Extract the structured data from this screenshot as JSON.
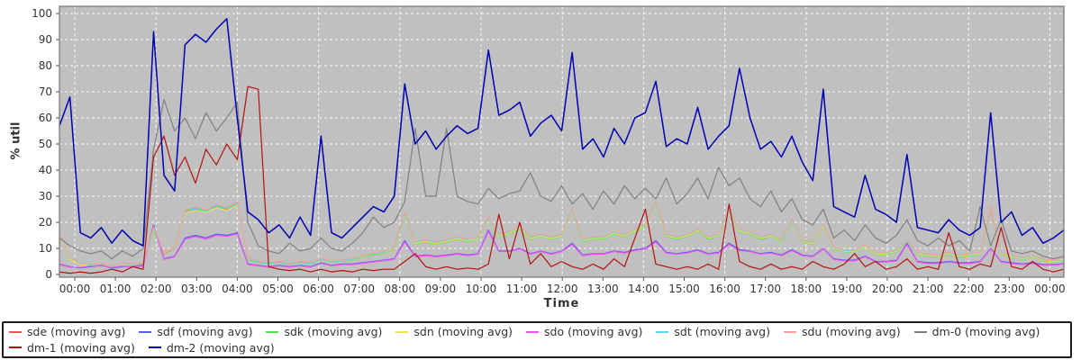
{
  "chart_data": {
    "type": "line",
    "title": "",
    "xlabel": "Time",
    "ylabel": "% util",
    "xlim_hours": [
      0,
      24
    ],
    "ylim": [
      0,
      100
    ],
    "grid": true,
    "legend_position": "bottom",
    "x_ticks": [
      "00:00",
      "01:00",
      "02:00",
      "03:00",
      "04:00",
      "05:00",
      "06:00",
      "07:00",
      "08:00",
      "09:00",
      "10:00",
      "11:00",
      "12:00",
      "13:00",
      "14:00",
      "15:00",
      "16:00",
      "17:00",
      "18:00",
      "19:00",
      "20:00",
      "21:00",
      "22:00",
      "23:00",
      "00:00"
    ],
    "y_ticks": [
      0,
      10,
      20,
      30,
      40,
      50,
      60,
      70,
      80,
      90,
      100
    ],
    "colors": {
      "plot_bg": "#c0c0c0",
      "grid": "#ffffff",
      "plot_border": "#7d7d7d",
      "axis_text": "#333333",
      "tick": "#555555",
      "page_bg": "#ffffff",
      "legend_border": "#1c1c1c"
    },
    "x_hours": [
      0,
      0.25,
      0.5,
      0.75,
      1,
      1.25,
      1.5,
      1.75,
      2,
      2.25,
      2.5,
      2.75,
      3,
      3.25,
      3.5,
      3.75,
      4,
      4.25,
      4.5,
      4.75,
      5,
      5.25,
      5.5,
      5.75,
      6,
      6.25,
      6.5,
      6.75,
      7,
      7.25,
      7.5,
      7.75,
      8,
      8.25,
      8.5,
      8.75,
      9,
      9.25,
      9.5,
      9.75,
      10,
      10.25,
      10.5,
      10.75,
      11,
      11.25,
      11.5,
      11.75,
      12,
      12.25,
      12.5,
      12.75,
      13,
      13.25,
      13.5,
      13.75,
      14,
      14.25,
      14.5,
      14.75,
      15,
      15.25,
      15.5,
      15.75,
      16,
      16.25,
      16.5,
      16.75,
      17,
      17.25,
      17.5,
      17.75,
      18,
      18.25,
      18.5,
      18.75,
      19,
      19.25,
      19.5,
      19.75,
      20,
      20.25,
      20.5,
      20.75,
      21,
      21.25,
      21.5,
      21.75,
      22,
      22.25,
      22.5,
      22.75,
      23,
      23.25,
      23.5,
      23.75,
      24
    ],
    "series": [
      {
        "name": "sde",
        "legend_label": "sde (moving avg)",
        "color": "#f25555",
        "values": [
          16,
          6,
          4,
          3.5,
          4,
          3,
          4.5,
          3.5,
          4,
          18,
          8,
          10,
          24,
          25,
          24,
          26,
          25,
          27,
          6,
          5,
          4.5,
          5,
          4,
          5,
          4.5,
          6,
          5,
          5.5,
          6,
          7,
          8,
          8.5,
          10,
          24,
          12,
          13,
          12,
          13,
          14,
          13,
          14,
          22,
          15,
          16,
          18,
          14,
          15,
          14,
          15,
          25,
          13,
          14,
          14,
          16,
          15,
          17,
          19,
          28,
          15,
          14,
          15,
          17,
          14,
          15,
          25,
          17,
          16,
          14,
          15,
          13,
          21,
          13,
          12,
          19,
          10,
          9,
          9,
          11,
          8,
          8,
          9,
          13,
          8,
          7.5,
          7,
          8,
          7,
          7.5,
          8,
          25,
          8,
          7,
          6,
          7,
          5.5,
          5,
          6
        ]
      },
      {
        "name": "sdf",
        "legend_label": "sdf (moving avg)",
        "color": "#5a5af2",
        "values": [
          4,
          3,
          2.5,
          3,
          3.5,
          2.5,
          3,
          3,
          3.5,
          19,
          6,
          7,
          14,
          15,
          14,
          15.5,
          15,
          16,
          4,
          3.5,
          3,
          3.5,
          3,
          3.5,
          3,
          4.5,
          3.5,
          4,
          4,
          4.5,
          5,
          5.5,
          6,
          13,
          7,
          7.5,
          7,
          7.5,
          8,
          7.5,
          8,
          17,
          9,
          9,
          10,
          8,
          9,
          8,
          9,
          12,
          7.5,
          8,
          8,
          9,
          8.5,
          9.5,
          10,
          13,
          8.5,
          8,
          8.5,
          9.5,
          8,
          8.5,
          12,
          9.5,
          9,
          8,
          8.5,
          7.5,
          9.5,
          7.5,
          7,
          10,
          6,
          5.5,
          5.5,
          7,
          5,
          5,
          5.5,
          12,
          5,
          4.5,
          4.5,
          5,
          4.5,
          4.5,
          5,
          10,
          5,
          4.5,
          4,
          4.5,
          3.8,
          3.8,
          4.2
        ]
      },
      {
        "name": "sdk",
        "legend_label": "sdk (moving avg)",
        "color": "#55e055",
        "values": [
          15.5,
          5.6,
          4.2,
          3.8,
          4.3,
          3.2,
          4.2,
          3.8,
          4.4,
          17,
          8.5,
          10.5,
          24.5,
          25.5,
          24.5,
          26.5,
          25.5,
          27.5,
          5.6,
          4.8,
          4.2,
          4.8,
          3.8,
          4.8,
          4.2,
          5.6,
          4.8,
          5.2,
          5.7,
          6.7,
          7.7,
          8.2,
          9.6,
          23.2,
          11.6,
          12.6,
          11.6,
          12.6,
          13.6,
          12.7,
          13.6,
          21.4,
          14.6,
          15.6,
          17.5,
          13.6,
          14.6,
          13.6,
          14.6,
          24.4,
          12.6,
          13.6,
          13.6,
          15.6,
          14.6,
          16.6,
          18.5,
          27.4,
          14.6,
          13.6,
          14.6,
          16.6,
          13.6,
          14.6,
          24.4,
          16.6,
          15.6,
          13.6,
          14.6,
          12.6,
          20.4,
          12.6,
          11.6,
          18.6,
          9.7,
          8.7,
          8.7,
          10.7,
          7.7,
          7.7,
          8.7,
          12.6,
          7.7,
          7.2,
          6.7,
          7.7,
          6.7,
          7.2,
          7.7,
          26,
          7.7,
          6.7,
          5.7,
          6.7,
          5.2,
          4.8,
          5.8
        ]
      },
      {
        "name": "sdn",
        "legend_label": "sdn (moving avg)",
        "color": "#e8e855",
        "values": [
          15.2,
          5.8,
          3.8,
          3.6,
          4.1,
          2.9,
          4.3,
          3.6,
          4.2,
          17.5,
          8.2,
          10.2,
          23.6,
          24.6,
          23.8,
          25.6,
          24.6,
          26.6,
          5.8,
          5.1,
          4.4,
          5.1,
          3.9,
          5.1,
          4.4,
          5.8,
          4.9,
          5.4,
          5.9,
          6.9,
          8.1,
          8.4,
          9.8,
          23.6,
          11.8,
          12.8,
          11.8,
          12.8,
          13.8,
          12.9,
          13.8,
          21.6,
          14.8,
          15.8,
          17.8,
          13.8,
          14.8,
          13.8,
          14.8,
          24.6,
          12.9,
          13.8,
          13.9,
          15.8,
          14.8,
          16.8,
          18.8,
          27.6,
          14.8,
          13.9,
          14.8,
          16.8,
          13.9,
          14.8,
          24.6,
          16.8,
          15.8,
          13.9,
          14.8,
          12.9,
          20.6,
          12.8,
          11.8,
          18.8,
          9.9,
          8.9,
          8.9,
          10.8,
          7.9,
          7.9,
          8.9,
          12.8,
          7.9,
          7.4,
          6.9,
          7.9,
          6.9,
          7.4,
          7.9,
          25.4,
          7.9,
          6.9,
          5.9,
          6.9,
          5.4,
          4.9,
          5.9
        ]
      },
      {
        "name": "sdo",
        "legend_label": "sdo (moving avg)",
        "color": "#ee55ee",
        "values": [
          3.8,
          2.8,
          2.7,
          3.2,
          3.3,
          2.7,
          3.2,
          2.8,
          3.3,
          18.5,
          5.8,
          6.8,
          13.5,
          14.5,
          13.6,
          15,
          14.6,
          15.6,
          3.8,
          3.3,
          2.8,
          3.3,
          2.8,
          3.3,
          2.8,
          4.3,
          3.3,
          3.8,
          3.8,
          4.3,
          4.8,
          5.3,
          5.8,
          12.5,
          6.8,
          7.2,
          6.8,
          7.2,
          7.8,
          7.2,
          7.8,
          16.5,
          8.8,
          8.8,
          9.8,
          7.8,
          8.8,
          7.8,
          8.8,
          11.5,
          7.2,
          7.8,
          7.8,
          8.8,
          8.2,
          9.2,
          9.8,
          12.5,
          8.2,
          7.8,
          8.2,
          9.2,
          7.8,
          8.2,
          11.5,
          9.2,
          8.8,
          7.8,
          8.2,
          7.2,
          9.2,
          7.2,
          6.8,
          9.8,
          5.8,
          5.2,
          5.2,
          6.8,
          4.8,
          4.8,
          5.2,
          11.5,
          4.8,
          4.2,
          4.2,
          4.8,
          4.2,
          4.2,
          4.8,
          9.8,
          4.8,
          4.2,
          3.8,
          4.2,
          3.6,
          3.6,
          4
        ]
      },
      {
        "name": "sdt",
        "legend_label": "sdt (moving avg)",
        "color": "#55dcec",
        "values": [
          15.8,
          6.2,
          4.4,
          3.7,
          4.2,
          3.1,
          4.4,
          3.7,
          4.3,
          17.8,
          8.4,
          10.4,
          24.2,
          25.2,
          24.2,
          26.2,
          25.2,
          27.2,
          5.9,
          5,
          4.3,
          5,
          3.9,
          5,
          4.3,
          5.9,
          4.9,
          5.3,
          5.9,
          7.1,
          8.2,
          8.6,
          10.2,
          23.8,
          12.2,
          13.2,
          12.2,
          13.2,
          14.2,
          13.2,
          14.2,
          21.8,
          15.2,
          16.2,
          18.2,
          14.2,
          15.2,
          14.2,
          15.2,
          24.8,
          13.2,
          14.2,
          14.2,
          16.2,
          15.2,
          17.2,
          19.2,
          27.8,
          15.2,
          14.2,
          15.2,
          17.2,
          14.2,
          15.2,
          24.8,
          17.2,
          16.2,
          14.2,
          15.2,
          13.2,
          20.8,
          13.2,
          12.2,
          19.2,
          10.2,
          9.2,
          9.2,
          11.2,
          8.2,
          8.2,
          9.2,
          12.9,
          8.2,
          7.7,
          7.2,
          8.2,
          7.2,
          7.7,
          8.2,
          25.8,
          8.2,
          7.2,
          6.2,
          7.2,
          5.7,
          5.2,
          6.2
        ]
      },
      {
        "name": "sdu",
        "legend_label": "sdu (moving avg)",
        "color": "#f2a0a0",
        "values": [
          16.2,
          6.4,
          4.1,
          3.9,
          4.4,
          3.3,
          4.6,
          3.9,
          4.5,
          18.2,
          8.6,
          10.6,
          24.8,
          25.8,
          24.8,
          26.8,
          25.8,
          27.8,
          6.2,
          5.2,
          4.6,
          5.2,
          4.1,
          5.2,
          4.6,
          6.2,
          5.1,
          5.6,
          6.2,
          7.2,
          8.4,
          8.8,
          10.4,
          24.2,
          12.4,
          13.4,
          12.4,
          13.4,
          14.4,
          13.4,
          14.4,
          22.2,
          15.4,
          16.4,
          18.4,
          14.4,
          15.4,
          14.4,
          15.4,
          25.2,
          13.4,
          14.4,
          14.4,
          16.4,
          15.4,
          17.4,
          19.4,
          28.2,
          15.4,
          14.4,
          15.4,
          17.4,
          14.4,
          15.4,
          25.2,
          17.4,
          16.4,
          14.4,
          15.4,
          13.4,
          21.2,
          13.4,
          12.4,
          19.4,
          10.4,
          9.4,
          9.4,
          11.4,
          8.4,
          8.4,
          9.4,
          13.2,
          8.4,
          7.9,
          7.4,
          8.4,
          7.4,
          7.9,
          8.4,
          26.2,
          8.4,
          7.4,
          6.4,
          7.4,
          5.9,
          5.4,
          6.4
        ]
      },
      {
        "name": "dm-0",
        "legend_label": "dm-0 (moving avg)",
        "color": "#808080",
        "values": [
          14,
          11,
          9,
          8,
          9,
          6,
          9,
          7,
          10,
          48,
          67,
          55,
          60,
          52,
          62,
          55,
          60,
          66,
          20,
          11,
          9,
          8,
          12,
          9,
          10,
          14,
          10,
          9,
          12,
          16,
          22,
          18,
          20,
          28,
          56,
          30,
          30,
          56,
          30,
          28,
          27,
          33,
          29,
          31,
          32,
          39,
          30,
          28,
          34,
          27,
          31,
          25,
          32,
          27,
          34,
          29,
          33,
          29,
          37,
          27,
          31,
          37,
          29,
          41,
          34,
          37,
          29,
          26,
          32,
          24,
          29,
          21,
          19,
          25,
          14,
          17,
          13,
          19,
          14,
          12,
          15,
          21,
          13,
          11,
          14,
          11,
          13,
          9,
          26,
          11,
          21,
          9,
          8,
          9,
          7,
          6,
          7
        ]
      },
      {
        "name": "dm-1",
        "legend_label": "dm-1 (moving avg)",
        "color": "#b31111",
        "values": [
          1,
          0.5,
          1,
          0.5,
          1,
          2,
          1,
          3,
          2,
          45,
          53,
          38,
          45,
          35,
          48,
          42,
          50,
          44,
          72,
          71,
          3,
          2,
          1.5,
          2,
          1,
          2,
          1,
          1.5,
          1,
          2,
          1.5,
          2,
          2,
          5,
          8,
          3,
          2,
          3,
          2,
          2.5,
          2,
          4,
          23,
          6,
          20,
          4,
          8,
          3,
          5,
          3,
          2,
          4,
          2,
          6,
          3,
          14,
          25,
          4,
          3,
          2,
          3,
          2,
          4,
          2,
          27,
          5,
          3,
          2,
          4,
          2,
          3,
          2,
          5,
          3,
          2,
          4,
          8,
          3,
          5,
          2,
          3,
          6,
          2,
          3,
          2,
          16,
          3,
          2,
          4,
          3,
          18,
          3,
          2,
          5,
          2,
          1,
          2
        ]
      },
      {
        "name": "dm-2",
        "legend_label": "dm-2 (moving avg)",
        "color": "#0000b3",
        "values": [
          57,
          68,
          16,
          14,
          18,
          12,
          17,
          13,
          11,
          93,
          38,
          32,
          88,
          92,
          89,
          94,
          98,
          60,
          24,
          21,
          16,
          19,
          14,
          22,
          15,
          53,
          16,
          14,
          18,
          22,
          26,
          24,
          30,
          73,
          50,
          55,
          48,
          53,
          57,
          54,
          56,
          86,
          61,
          63,
          66,
          53,
          58,
          61,
          55,
          85,
          48,
          52,
          45,
          56,
          50,
          60,
          62,
          74,
          49,
          52,
          50,
          64,
          48,
          53,
          57,
          79,
          60,
          48,
          51,
          45,
          53,
          43,
          36,
          71,
          26,
          24,
          22,
          38,
          25,
          23,
          20,
          46,
          18,
          17,
          16,
          21,
          17,
          15,
          18,
          62,
          20,
          24,
          15,
          18,
          12,
          14,
          17
        ]
      }
    ]
  }
}
